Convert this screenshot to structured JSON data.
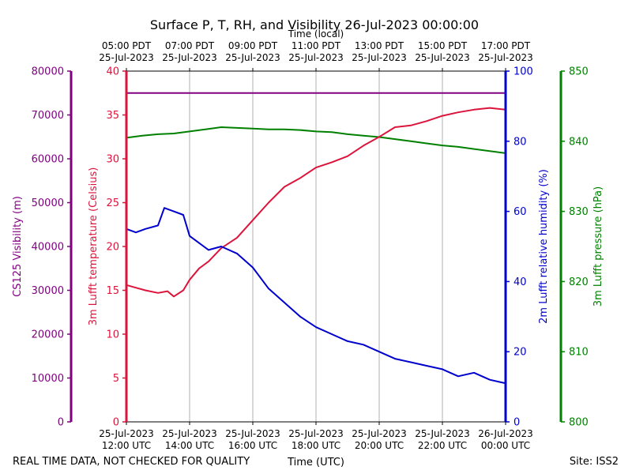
{
  "chart_data": {
    "type": "line",
    "title": "Surface P, T, RH, and Visibility 26-Jul-2023 00:00:00",
    "top_axis_label": "Time (local)",
    "xlabel": "Time (UTC)",
    "footer_left": "REAL TIME DATA, NOT CHECKED FOR QUALITY",
    "footer_right": "Site: ISS2",
    "x_hours_range": [
      12,
      24
    ],
    "bottom_ticks": [
      {
        "x": 12,
        "line1": "25-Jul-2023",
        "line2": "12:00 UTC"
      },
      {
        "x": 14,
        "line1": "25-Jul-2023",
        "line2": "14:00 UTC"
      },
      {
        "x": 16,
        "line1": "25-Jul-2023",
        "line2": "16:00 UTC"
      },
      {
        "x": 18,
        "line1": "25-Jul-2023",
        "line2": "18:00 UTC"
      },
      {
        "x": 20,
        "line1": "25-Jul-2023",
        "line2": "20:00 UTC"
      },
      {
        "x": 22,
        "line1": "25-Jul-2023",
        "line2": "22:00 UTC"
      },
      {
        "x": 24,
        "line1": "26-Jul-2023",
        "line2": "00:00 UTC"
      }
    ],
    "top_ticks": [
      {
        "x": 12,
        "line1": "05:00 PDT",
        "line2": "25-Jul-2023"
      },
      {
        "x": 14,
        "line1": "07:00 PDT",
        "line2": "25-Jul-2023"
      },
      {
        "x": 16,
        "line1": "09:00 PDT",
        "line2": "25-Jul-2023"
      },
      {
        "x": 18,
        "line1": "11:00 PDT",
        "line2": "25-Jul-2023"
      },
      {
        "x": 20,
        "line1": "13:00 PDT",
        "line2": "25-Jul-2023"
      },
      {
        "x": 22,
        "line1": "15:00 PDT",
        "line2": "25-Jul-2023"
      },
      {
        "x": 24,
        "line1": "17:00 PDT",
        "line2": "25-Jul-2023"
      }
    ],
    "axes": {
      "visibility": {
        "label": "CS125 Visibility (m)",
        "range": [
          0,
          80000
        ],
        "ticks": [
          "0",
          "10000",
          "20000",
          "30000",
          "40000",
          "50000",
          "60000",
          "70000",
          "80000"
        ],
        "color": "#800080"
      },
      "temperature": {
        "label": "3m Lufft temperature (Celsius)",
        "range": [
          0,
          40
        ],
        "ticks": [
          "0",
          "5",
          "10",
          "15",
          "20",
          "25",
          "30",
          "35",
          "40"
        ],
        "color": "#dc143c"
      },
      "humidity": {
        "label": "2m Lufft relative humidity (%)",
        "range": [
          0,
          100
        ],
        "ticks": [
          "0",
          "20",
          "40",
          "60",
          "80",
          "100"
        ],
        "color": "#0000cd"
      },
      "pressure": {
        "label": "3m Lufft pressure (hPa)",
        "range": [
          800,
          850
        ],
        "ticks": [
          "800",
          "810",
          "820",
          "830",
          "840",
          "850"
        ],
        "color": "#008000"
      }
    },
    "series": [
      {
        "name": "CS125 Visibility",
        "axis": "visibility",
        "color": "#800080",
        "x": [
          12,
          24
        ],
        "values": [
          75000,
          75000
        ]
      },
      {
        "name": "3m Lufft pressure",
        "axis": "pressure",
        "color": "#008000",
        "x": [
          12,
          12.5,
          13,
          13.5,
          14,
          14.5,
          15,
          15.5,
          16,
          16.5,
          17,
          17.5,
          18,
          18.5,
          19,
          19.5,
          20,
          20.5,
          21,
          21.5,
          22,
          22.5,
          23,
          23.5,
          24
        ],
        "values": [
          840.5,
          840.8,
          841.0,
          841.1,
          841.4,
          841.7,
          842.0,
          841.9,
          841.8,
          841.7,
          841.7,
          841.6,
          841.4,
          841.3,
          841.0,
          840.8,
          840.6,
          840.3,
          840.0,
          839.7,
          839.4,
          839.2,
          838.9,
          838.6,
          838.3
        ]
      },
      {
        "name": "3m Lufft temperature",
        "axis": "temperature",
        "color": "#dc143c",
        "x": [
          12,
          12.3,
          12.6,
          13,
          13.3,
          13.5,
          13.8,
          14,
          14.3,
          14.6,
          15,
          15.5,
          16,
          16.5,
          17,
          17.5,
          18,
          18.5,
          19,
          19.5,
          20,
          20.5,
          21,
          21.5,
          22,
          22.5,
          23,
          23.5,
          24
        ],
        "values": [
          15.6,
          15.3,
          15.0,
          14.7,
          14.9,
          14.3,
          15.0,
          16.2,
          17.5,
          18.3,
          19.8,
          21.0,
          23.0,
          25.0,
          26.8,
          27.8,
          29.0,
          29.6,
          30.3,
          31.5,
          32.5,
          33.6,
          33.8,
          34.3,
          34.9,
          35.3,
          35.6,
          35.8,
          35.6
        ]
      },
      {
        "name": "2m Lufft relative humidity",
        "axis": "humidity",
        "color": "#0000cd",
        "x": [
          12,
          12.3,
          12.6,
          13,
          13.2,
          13.5,
          13.8,
          14,
          14.3,
          14.6,
          15,
          15.5,
          16,
          16.5,
          17,
          17.5,
          18,
          18.5,
          19,
          19.5,
          20,
          20.5,
          21,
          21.5,
          22,
          22.5,
          23,
          23.5,
          24
        ],
        "values": [
          55,
          54,
          55,
          56,
          61,
          60,
          59,
          53,
          51,
          49,
          50,
          48,
          44,
          38,
          34,
          30,
          27,
          25,
          23,
          22,
          20,
          18,
          17,
          16,
          15,
          13,
          14,
          12,
          11
        ]
      }
    ]
  }
}
